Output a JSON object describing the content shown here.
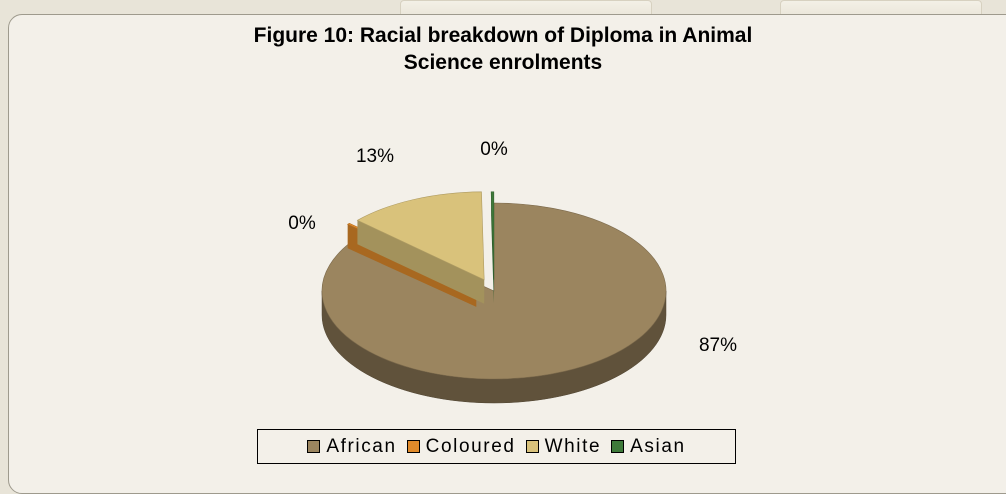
{
  "chart_data": {
    "type": "pie",
    "title": "Figure 10: Racial breakdown of Diploma in Animal Science enrolments",
    "title_lines": [
      "Figure 10: Racial breakdown of Diploma in Animal",
      "Science enrolments"
    ],
    "categories": [
      "African",
      "Coloured",
      "White",
      "Asian"
    ],
    "values": [
      87,
      0,
      13,
      0
    ],
    "data_labels": [
      "87%",
      "0%",
      "13%",
      "0%"
    ],
    "colors": [
      "#9b855f",
      "#e08a2a",
      "#d9c27b",
      "#3e7a3a"
    ],
    "legend_position": "bottom",
    "style": "3d-exploded"
  }
}
